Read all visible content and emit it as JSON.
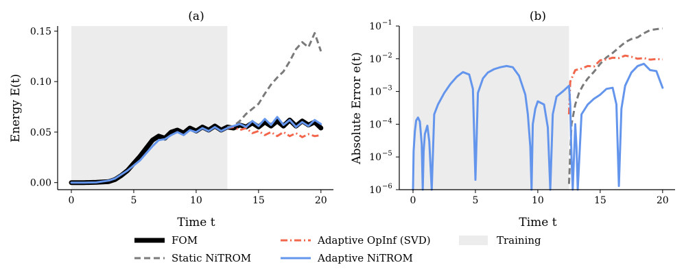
{
  "chart_data": [
    {
      "panel": "(a)",
      "type": "line",
      "title": "(a)",
      "xlabel": "Time t",
      "ylabel": "Energy E(t)",
      "xlim": [
        -1.1,
        21.0
      ],
      "ylim": [
        -0.007,
        0.155
      ],
      "xticks": [
        0,
        5,
        10,
        15,
        20
      ],
      "xtick_labels": [
        "0",
        "5",
        "10",
        "15",
        "20"
      ],
      "yticks": [
        0.0,
        0.05,
        0.1,
        0.15
      ],
      "ytick_labels": [
        "0.00",
        "0.05",
        "0.10",
        "0.15"
      ],
      "training_region": [
        0,
        12.5
      ],
      "series": [
        {
          "name": "FOM",
          "x": [
            0,
            1,
            2,
            3,
            3.5,
            4,
            4.5,
            5,
            5.5,
            6,
            6.5,
            7,
            7.5,
            8,
            8.5,
            9,
            9.5,
            10,
            10.5,
            11,
            11.5,
            12,
            12.5,
            13,
            13.5,
            14,
            14.5,
            15,
            15.5,
            16,
            16.5,
            17,
            17.5,
            18,
            18.5,
            19,
            19.5,
            20
          ],
          "y": [
            0,
            0,
            0.0003,
            0.001,
            0.003,
            0.007,
            0.012,
            0.019,
            0.026,
            0.034,
            0.042,
            0.046,
            0.044,
            0.05,
            0.052,
            0.049,
            0.054,
            0.051,
            0.055,
            0.052,
            0.056,
            0.052,
            0.055,
            0.054,
            0.057,
            0.055,
            0.059,
            0.055,
            0.06,
            0.056,
            0.061,
            0.056,
            0.062,
            0.056,
            0.061,
            0.057,
            0.06,
            0.054
          ]
        },
        {
          "name": "Static NiTROM",
          "x": [
            12.5,
            13,
            13.5,
            14,
            14.5,
            15,
            15.5,
            16,
            16.5,
            17,
            17.5,
            18,
            18.5,
            19,
            19.5,
            20
          ],
          "y": [
            0.055,
            0.056,
            0.061,
            0.068,
            0.073,
            0.078,
            0.088,
            0.097,
            0.104,
            0.11,
            0.12,
            0.132,
            0.139,
            0.134,
            0.148,
            0.13
          ]
        },
        {
          "name": "Adaptive OpInf (SVD)",
          "x": [
            12.5,
            13,
            13.5,
            14,
            14.5,
            15,
            15.5,
            16,
            16.5,
            17,
            17.5,
            18,
            18.5,
            19,
            19.5,
            20
          ],
          "y": [
            0.054,
            0.055,
            0.052,
            0.054,
            0.049,
            0.051,
            0.047,
            0.05,
            0.046,
            0.05,
            0.046,
            0.049,
            0.045,
            0.048,
            0.046,
            0.047
          ]
        },
        {
          "name": "Adaptive NiTROM",
          "x": [
            0,
            1,
            2,
            3,
            3.5,
            4,
            4.5,
            5,
            5.5,
            6,
            6.5,
            7,
            7.5,
            8,
            8.5,
            9,
            9.5,
            10,
            10.5,
            11,
            11.5,
            12,
            12.5,
            13,
            13.5,
            14,
            14.5,
            15,
            15.5,
            16,
            16.5,
            17,
            17.5,
            18,
            18.5,
            19,
            19.5,
            20
          ],
          "y": [
            0,
            0,
            0.0002,
            0.002,
            0.004,
            0.008,
            0.012,
            0.017,
            0.022,
            0.029,
            0.036,
            0.042,
            0.043,
            0.047,
            0.05,
            0.047,
            0.052,
            0.05,
            0.054,
            0.051,
            0.055,
            0.051,
            0.054,
            0.056,
            0.058,
            0.055,
            0.061,
            0.056,
            0.063,
            0.057,
            0.065,
            0.057,
            0.062,
            0.055,
            0.06,
            0.056,
            0.062,
            0.058
          ]
        }
      ]
    },
    {
      "panel": "(b)",
      "type": "line",
      "title": "(b)",
      "xlabel": "Time t",
      "ylabel": "Absolute Error e(t)",
      "yscale": "log",
      "xlim": [
        -1.1,
        21.0
      ],
      "ylim": [
        1e-06,
        0.1
      ],
      "xticks": [
        0,
        5,
        10,
        15,
        20
      ],
      "xtick_labels": [
        "0",
        "5",
        "10",
        "15",
        "20"
      ],
      "yticks": [
        1e-06,
        1e-05,
        0.0001,
        0.001,
        0.01,
        0.1
      ],
      "ytick_labels": [
        "10",
        "10",
        "10",
        "10",
        "10",
        "10"
      ],
      "ytick_exponents": [
        "−6",
        "−5",
        "−4",
        "−3",
        "−2",
        "−1"
      ],
      "training_region": [
        0,
        12.5
      ],
      "series": [
        {
          "name": "Static NiTROM",
          "x": [
            12.5,
            12.7,
            13,
            13.3,
            13.6,
            14,
            14.5,
            15,
            15.5,
            16,
            16.5,
            17,
            17.5,
            18,
            18.5,
            19,
            19.5,
            20
          ],
          "y": [
            1.5e-06,
            0.0001,
            0.0004,
            0.0009,
            0.0015,
            0.0025,
            0.004,
            0.007,
            0.011,
            0.015,
            0.022,
            0.032,
            0.04,
            0.045,
            0.06,
            0.075,
            0.08,
            0.085
          ]
        },
        {
          "name": "Adaptive OpInf (SVD)",
          "x": [
            12.5,
            12.6,
            13,
            13.5,
            14,
            14.5,
            15,
            15.5,
            16,
            16.5,
            17,
            17.5,
            18,
            18.5,
            19,
            19.5,
            20
          ],
          "y": [
            0.0002,
            0.002,
            0.0045,
            0.005,
            0.006,
            0.0058,
            0.009,
            0.0095,
            0.0108,
            0.0105,
            0.0125,
            0.0115,
            0.01,
            0.0105,
            0.0094,
            0.0098,
            0.0095
          ]
        },
        {
          "name": "Adaptive NiTROM",
          "x": [
            0,
            0.05,
            0.15,
            0.25,
            0.4,
            0.55,
            0.7,
            0.78,
            0.85,
            0.95,
            1.15,
            1.3,
            1.5,
            1.7,
            2.0,
            2.5,
            3.0,
            3.5,
            4.0,
            4.5,
            4.8,
            5.0,
            5.2,
            5.6,
            6.0,
            6.5,
            7.0,
            7.5,
            8.0,
            8.5,
            9.0,
            9.2,
            9.4,
            9.5,
            9.6,
            9.8,
            10.0,
            10.5,
            10.8,
            11.0,
            11.2,
            11.5,
            12.0,
            12.5,
            12.6,
            12.7,
            12.8,
            13.0,
            13.1,
            13.2,
            13.5,
            14.0,
            14.5,
            15.0,
            15.5,
            16.0,
            16.3,
            16.5,
            16.7,
            17.0,
            17.5,
            18.0,
            18.5,
            19.0,
            19.5,
            20.0
          ],
          "y": [
            1e-06,
            1.5e-05,
            6e-05,
            0.00013,
            0.00016,
            0.00012,
            2.5e-05,
            1e-06,
            1.5e-05,
            5e-05,
            9e-05,
            3e-05,
            1e-06,
            0.0002,
            0.0004,
            0.0009,
            0.0017,
            0.0028,
            0.0039,
            0.0033,
            0.0012,
            2e-06,
            0.0009,
            0.0025,
            0.0038,
            0.0048,
            0.0055,
            0.006,
            0.0055,
            0.003,
            0.0008,
            0.0002,
            2e-05,
            1e-06,
            0.0001,
            0.0003,
            0.0005,
            0.0004,
            8e-05,
            1e-06,
            0.0002,
            0.0007,
            0.001,
            0.0015,
            0.0004,
            1e-05,
            1e-06,
            0.0001,
            2e-05,
            1e-06,
            0.0002,
            0.0004,
            0.0006,
            0.0008,
            0.0012,
            0.0013,
            0.0004,
            1.3e-06,
            0.0003,
            0.0015,
            0.0038,
            0.006,
            0.007,
            0.0045,
            0.0042,
            0.0013
          ]
        }
      ]
    }
  ],
  "legend": {
    "items": [
      {
        "label": "FOM",
        "style": "fom"
      },
      {
        "label": "Static NiTROM",
        "style": "static"
      },
      {
        "label": "Adaptive OpInf (SVD)",
        "style": "opinf"
      },
      {
        "label": "Adaptive NiTROM",
        "style": "nitrom"
      },
      {
        "label": "Training",
        "style": "training"
      }
    ]
  },
  "colors": {
    "fom": "#000000",
    "static": "#7a7a7a",
    "opinf": "#f2664c",
    "nitrom": "#6495ed",
    "training": "#ececec"
  }
}
